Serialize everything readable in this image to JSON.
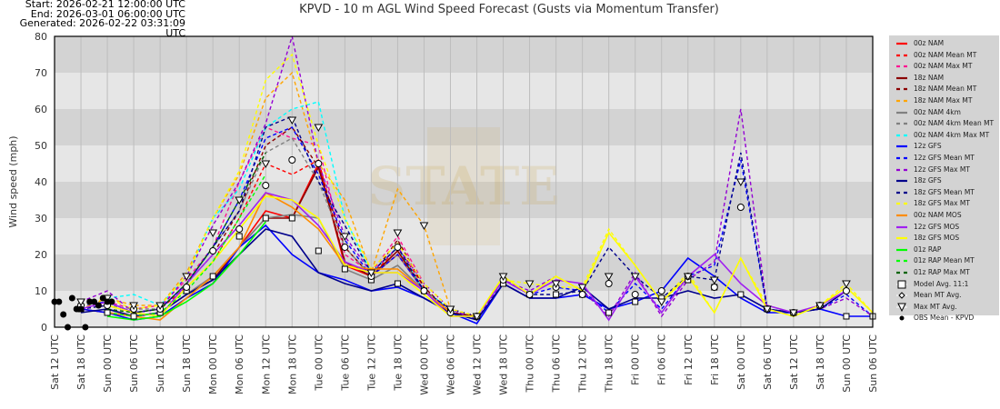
{
  "header": {
    "start": "Start: 2026-02-21 12:00:00 UTC",
    "end": "End: 2026-03-01 06:00:00 UTC",
    "generated": "Generated: 2026-02-22 03:31:09 UTC"
  },
  "chart_data": {
    "type": "line",
    "title": "KPVD - 10 m AGL Wind Speed Forecast (Gusts via Momentum Transfer)",
    "xlabel": "",
    "ylabel": "Wind speed (mph)",
    "ylim": [
      0,
      80
    ],
    "yticks": [
      "0",
      "10",
      "20",
      "30",
      "40",
      "50",
      "60",
      "70",
      "80"
    ],
    "grid": true,
    "legend_position": "right",
    "categories": [
      "Sat 12 UTC",
      "Sat 18 UTC",
      "Sun 00 UTC",
      "Sun 06 UTC",
      "Sun 12 UTC",
      "Sun 18 UTC",
      "Mon 00 UTC",
      "Mon 06 UTC",
      "Mon 12 UTC",
      "Mon 18 UTC",
      "Tue 00 UTC",
      "Tue 06 UTC",
      "Tue 12 UTC",
      "Tue 18 UTC",
      "Wed 00 UTC",
      "Wed 06 UTC",
      "Wed 12 UTC",
      "Wed 18 UTC",
      "Thu 00 UTC",
      "Thu 06 UTC",
      "Thu 12 UTC",
      "Thu 18 UTC",
      "Fri 00 UTC",
      "Fri 06 UTC",
      "Fri 12 UTC",
      "Fri 18 UTC",
      "Sat 00 UTC",
      "Sat 06 UTC",
      "Sat 12 UTC",
      "Sat 18 UTC",
      "Sun 00 UTC",
      "Sun 06 UTC"
    ],
    "series": [
      {
        "name": "00z NAM",
        "color": "#ff0000",
        "dash": "solid",
        "values": [
          null,
          null,
          5,
          3,
          4,
          9,
          14,
          22,
          32,
          30,
          45,
          17,
          14,
          20,
          10,
          4,
          3,
          null,
          null,
          null,
          null,
          null,
          null,
          null,
          null,
          null,
          null,
          null,
          null,
          null,
          null,
          null
        ]
      },
      {
        "name": "00z NAM Mean MT",
        "color": "#ff0000",
        "dash": "dashed",
        "values": [
          null,
          null,
          6,
          4,
          5,
          11,
          18,
          30,
          45,
          42,
          46,
          18,
          14,
          22,
          11,
          4,
          3,
          null,
          null,
          null,
          null,
          null,
          null,
          null,
          null,
          null,
          null,
          null,
          null,
          null,
          null,
          null
        ]
      },
      {
        "name": "00z NAM Max MT",
        "color": "#ff1493",
        "dash": "dashed",
        "values": [
          null,
          null,
          7,
          5,
          6,
          13,
          22,
          40,
          55,
          52,
          50,
          20,
          15,
          25,
          12,
          5,
          3,
          null,
          null,
          null,
          null,
          null,
          null,
          null,
          null,
          null,
          null,
          null,
          null,
          null,
          null,
          null
        ]
      },
      {
        "name": "18z NAM",
        "color": "#8b0000",
        "dash": "solid",
        "values": [
          null,
          5,
          4,
          3,
          4,
          9,
          13,
          22,
          30,
          30,
          44,
          18,
          14,
          21,
          10,
          4,
          3,
          null,
          null,
          null,
          null,
          null,
          null,
          null,
          null,
          null,
          null,
          null,
          null,
          null,
          null,
          null
        ]
      },
      {
        "name": "18z NAM Mean MT",
        "color": "#8b0000",
        "dash": "dashed",
        "values": [
          null,
          5,
          6,
          4,
          5,
          12,
          20,
          32,
          50,
          55,
          44,
          22,
          14,
          24,
          11,
          4,
          3,
          null,
          null,
          null,
          null,
          null,
          null,
          null,
          null,
          null,
          null,
          null,
          null,
          null,
          null,
          null
        ]
      },
      {
        "name": "18z NAM Max MT",
        "color": "#ffa500",
        "dash": "dashed",
        "values": [
          null,
          5,
          8,
          6,
          6,
          15,
          30,
          42,
          63,
          70,
          45,
          35,
          15,
          38,
          28,
          5,
          3,
          null,
          null,
          null,
          null,
          null,
          null,
          null,
          null,
          null,
          null,
          null,
          null,
          null,
          null,
          null
        ]
      },
      {
        "name": "00z NAM 4km",
        "color": "#808080",
        "dash": "solid",
        "values": [
          null,
          null,
          5,
          3,
          4,
          9,
          14,
          22,
          30,
          31,
          30,
          16,
          13,
          17,
          10,
          4,
          null,
          null,
          null,
          null,
          null,
          null,
          null,
          null,
          null,
          null,
          null,
          null,
          null,
          null,
          null,
          null
        ]
      },
      {
        "name": "00z NAM 4km Mean MT",
        "color": "#808080",
        "dash": "dashed",
        "values": [
          null,
          null,
          6,
          5,
          5,
          12,
          22,
          32,
          48,
          52,
          40,
          22,
          14,
          20,
          10,
          4,
          null,
          null,
          null,
          null,
          null,
          null,
          null,
          null,
          null,
          null,
          null,
          null,
          null,
          null,
          null,
          null
        ]
      },
      {
        "name": "00z NAM 4km Max MT",
        "color": "#00ffff",
        "dash": "dashed",
        "values": [
          null,
          null,
          8,
          9,
          6,
          14,
          30,
          38,
          55,
          60,
          62,
          30,
          15,
          22,
          10,
          5,
          null,
          null,
          null,
          null,
          null,
          null,
          null,
          null,
          null,
          null,
          null,
          null,
          null,
          null,
          null,
          null
        ]
      },
      {
        "name": "12z GFS",
        "color": "#0000ff",
        "dash": "solid",
        "values": [
          null,
          5,
          4,
          2,
          3,
          8,
          12,
          22,
          28,
          20,
          15,
          13,
          10,
          11,
          8,
          4,
          1,
          12,
          8,
          8,
          9,
          5,
          7,
          10,
          19,
          14,
          8,
          4,
          4,
          5,
          3,
          3
        ]
      },
      {
        "name": "12z GFS Mean MT",
        "color": "#0000ff",
        "dash": "dashed",
        "values": [
          null,
          6,
          7,
          4,
          5,
          12,
          22,
          35,
          52,
          55,
          42,
          24,
          14,
          20,
          10,
          5,
          2,
          13,
          9,
          11,
          10,
          4,
          12,
          5,
          14,
          17,
          46,
          5,
          4,
          5,
          9,
          3
        ]
      },
      {
        "name": "12z GFS Max MT",
        "color": "#9400d3",
        "dash": "dashed",
        "values": [
          null,
          7,
          10,
          4,
          5,
          14,
          28,
          40,
          56,
          80,
          45,
          25,
          15,
          22,
          12,
          5,
          2,
          13,
          10,
          14,
          10,
          3,
          15,
          3,
          13,
          18,
          60,
          5,
          4,
          5,
          8,
          3
        ]
      },
      {
        "name": "18z GFS",
        "color": "#00008b",
        "dash": "solid",
        "values": [
          null,
          4,
          5,
          3,
          4,
          9,
          13,
          20,
          27,
          25,
          15,
          12,
          10,
          12,
          8,
          4,
          2,
          12,
          8,
          8,
          11,
          5,
          8,
          8,
          10,
          8,
          9,
          5,
          4,
          5,
          10,
          null
        ]
      },
      {
        "name": "18z GFS Mean MT",
        "color": "#00008b",
        "dash": "dashed",
        "values": [
          null,
          5,
          6,
          4,
          5,
          12,
          22,
          32,
          55,
          58,
          40,
          28,
          15,
          22,
          10,
          5,
          3,
          13,
          9,
          9,
          10,
          22,
          14,
          8,
          14,
          13,
          48,
          5,
          4,
          5,
          10,
          null
        ]
      },
      {
        "name": "18z GFS Max MT",
        "color": "#ffff00",
        "dash": "dashed",
        "values": [
          null,
          6,
          8,
          5,
          6,
          14,
          30,
          43,
          68,
          75,
          50,
          30,
          16,
          23,
          12,
          5,
          3,
          13,
          12,
          11,
          11,
          27,
          17,
          7,
          15,
          4,
          19,
          6,
          4,
          6,
          12,
          4
        ]
      },
      {
        "name": "00z NAM MOS",
        "color": "#ff8c00",
        "dash": "solid",
        "values": [
          null,
          null,
          4,
          3,
          2,
          8,
          14,
          22,
          37,
          33,
          27,
          17,
          16,
          16,
          10,
          4,
          null,
          null,
          null,
          null,
          null,
          null,
          null,
          null,
          null,
          null,
          null,
          null,
          null,
          null,
          null,
          null
        ]
      },
      {
        "name": "12z GFS MOS",
        "color": "#a020f0",
        "dash": "solid",
        "values": [
          null,
          5,
          7,
          4,
          3,
          12,
          20,
          28,
          37,
          35,
          28,
          18,
          15,
          15,
          10,
          3,
          3,
          13,
          9,
          13,
          12,
          2,
          14,
          4,
          14,
          20,
          12,
          6,
          4,
          6,
          10,
          null
        ]
      },
      {
        "name": "18z GFS MOS",
        "color": "#ffff00",
        "dash": "solid",
        "values": [
          null,
          null,
          6,
          4,
          3,
          11,
          18,
          27,
          36,
          35,
          30,
          17,
          15,
          15,
          9,
          3,
          3,
          14,
          9,
          14,
          10,
          26,
          17,
          7,
          14,
          4,
          19,
          5,
          3,
          6,
          11,
          4
        ]
      },
      {
        "name": "01z RAP",
        "color": "#00ff00",
        "dash": "solid",
        "values": [
          null,
          null,
          3,
          2,
          3,
          7,
          12,
          20,
          29,
          null,
          null,
          null,
          null,
          null,
          null,
          null,
          null,
          null,
          null,
          null,
          null,
          null,
          null,
          null,
          null,
          null,
          null,
          null,
          null,
          null,
          null,
          null
        ]
      },
      {
        "name": "01z RAP Mean MT",
        "color": "#00ff00",
        "dash": "dashed",
        "values": [
          null,
          null,
          4,
          3,
          4,
          10,
          18,
          30,
          42,
          null,
          null,
          null,
          null,
          null,
          null,
          null,
          null,
          null,
          null,
          null,
          null,
          null,
          null,
          null,
          null,
          null,
          null,
          null,
          null,
          null,
          null,
          null
        ]
      },
      {
        "name": "01z RAP Max MT",
        "color": "#006400",
        "dash": "dashed",
        "values": [
          null,
          null,
          5,
          4,
          5,
          12,
          22,
          35,
          48,
          null,
          null,
          null,
          null,
          null,
          null,
          null,
          null,
          null,
          null,
          null,
          null,
          null,
          null,
          null,
          null,
          null,
          null,
          null,
          null,
          null,
          null,
          null
        ]
      }
    ],
    "markers": [
      {
        "name": "Model Avg. 11:1",
        "symbol": "square",
        "values": [
          null,
          5,
          4,
          3,
          4,
          10,
          14,
          25,
          30,
          30,
          21,
          16,
          13,
          12,
          10,
          5,
          3,
          12,
          9,
          9,
          9,
          4,
          7,
          8,
          13,
          11,
          9,
          5,
          4,
          6,
          3,
          3
        ]
      },
      {
        "name": "Mean MT Avg.",
        "symbol": "diamond",
        "values": [
          null,
          6,
          6,
          5,
          5,
          11,
          21,
          27,
          39,
          46,
          45,
          22,
          14,
          22,
          10,
          4,
          3,
          13,
          9,
          11,
          9,
          12,
          9,
          10,
          14,
          11,
          33,
          5,
          4,
          6,
          10,
          null
        ]
      },
      {
        "name": "Max MT Avg.",
        "symbol": "triangle",
        "values": [
          null,
          7,
          8,
          6,
          6,
          14,
          26,
          35,
          45,
          57,
          55,
          25,
          15,
          26,
          28,
          5,
          3,
          14,
          12,
          12,
          11,
          14,
          14,
          7,
          14,
          13,
          40,
          5,
          4,
          6,
          12,
          null
        ]
      }
    ],
    "observations": {
      "name": "OBS Mean - KPVD",
      "symbol": "dot",
      "x_hours_from_start": [
        0,
        1,
        2,
        3,
        4,
        5,
        6,
        7,
        8,
        9,
        10,
        11,
        12,
        13
      ],
      "values": [
        7,
        7,
        3.5,
        0,
        8,
        5,
        5,
        0,
        7,
        7,
        6,
        8,
        7,
        7
      ]
    }
  }
}
